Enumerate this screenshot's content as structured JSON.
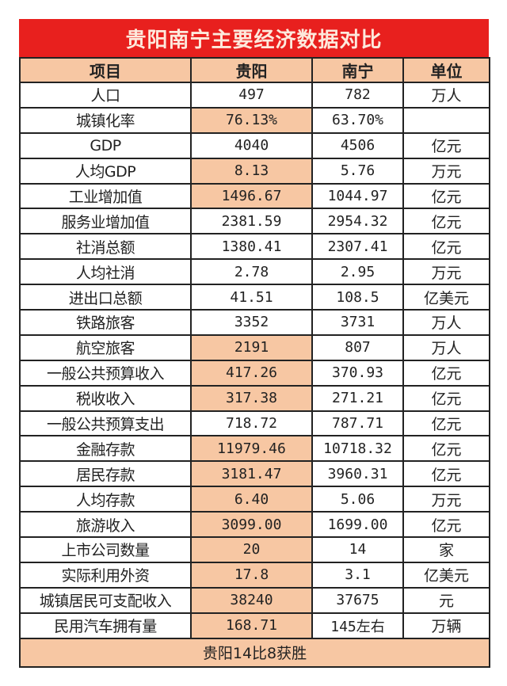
{
  "title": "贵阳南宁主要经济数据对比",
  "colors": {
    "title_bg": "#e8201e",
    "highlight": "#f7c7a3"
  },
  "headers": [
    "项目",
    "贵阳",
    "南宁",
    "单位"
  ],
  "rows": [
    {
      "item": "人口",
      "guiyang": "497",
      "nanning": "782",
      "unit": "万人",
      "guiyang_highlight": false
    },
    {
      "item": "城镇化率",
      "guiyang": "76.13%",
      "nanning": "63.70%",
      "unit": "",
      "guiyang_highlight": true
    },
    {
      "item": "GDP",
      "guiyang": "4040",
      "nanning": "4506",
      "unit": "亿元",
      "guiyang_highlight": false
    },
    {
      "item": "人均GDP",
      "guiyang": "8.13",
      "nanning": "5.76",
      "unit": "万元",
      "guiyang_highlight": true
    },
    {
      "item": "工业增加值",
      "guiyang": "1496.67",
      "nanning": "1044.97",
      "unit": "亿元",
      "guiyang_highlight": true
    },
    {
      "item": "服务业增加值",
      "guiyang": "2381.59",
      "nanning": "2954.32",
      "unit": "亿元",
      "guiyang_highlight": false
    },
    {
      "item": "社消总额",
      "guiyang": "1380.41",
      "nanning": "2307.41",
      "unit": "亿元",
      "guiyang_highlight": false
    },
    {
      "item": "人均社消",
      "guiyang": "2.78",
      "nanning": "2.95",
      "unit": "万元",
      "guiyang_highlight": false
    },
    {
      "item": "进出口总额",
      "guiyang": "41.51",
      "nanning": "108.5",
      "unit": "亿美元",
      "guiyang_highlight": false
    },
    {
      "item": "铁路旅客",
      "guiyang": "3352",
      "nanning": "3731",
      "unit": "万人",
      "guiyang_highlight": false
    },
    {
      "item": "航空旅客",
      "guiyang": "2191",
      "nanning": "807",
      "unit": "万人",
      "guiyang_highlight": true
    },
    {
      "item": "一般公共预算收入",
      "guiyang": "417.26",
      "nanning": "370.93",
      "unit": "亿元",
      "guiyang_highlight": true
    },
    {
      "item": "税收收入",
      "guiyang": "317.38",
      "nanning": "271.21",
      "unit": "亿元",
      "guiyang_highlight": true
    },
    {
      "item": "一般公共预算支出",
      "guiyang": "718.72",
      "nanning": "787.71",
      "unit": "亿元",
      "guiyang_highlight": false
    },
    {
      "item": "金融存款",
      "guiyang": "11979.46",
      "nanning": "10718.32",
      "unit": "亿元",
      "guiyang_highlight": true
    },
    {
      "item": "居民存款",
      "guiyang": "3181.47",
      "nanning": "3960.31",
      "unit": "亿元",
      "guiyang_highlight": true
    },
    {
      "item": "人均存款",
      "guiyang": "6.40",
      "nanning": "5.06",
      "unit": "万元",
      "guiyang_highlight": true
    },
    {
      "item": "旅游收入",
      "guiyang": "3099.00",
      "nanning": "1699.00",
      "unit": "亿元",
      "guiyang_highlight": true
    },
    {
      "item": "上市公司数量",
      "guiyang": "20",
      "nanning": "14",
      "unit": "家",
      "guiyang_highlight": true
    },
    {
      "item": "实际利用外资",
      "guiyang": "17.8",
      "nanning": "3.1",
      "unit": "亿美元",
      "guiyang_highlight": true
    },
    {
      "item": "城镇居民可支配收入",
      "guiyang": "38240",
      "nanning": "37675",
      "unit": "元",
      "guiyang_highlight": true
    },
    {
      "item": "民用汽车拥有量",
      "guiyang": "168.71",
      "nanning": "145左右",
      "unit": "万辆",
      "guiyang_highlight": true
    }
  ],
  "summary": "贵阳14比8获胜"
}
